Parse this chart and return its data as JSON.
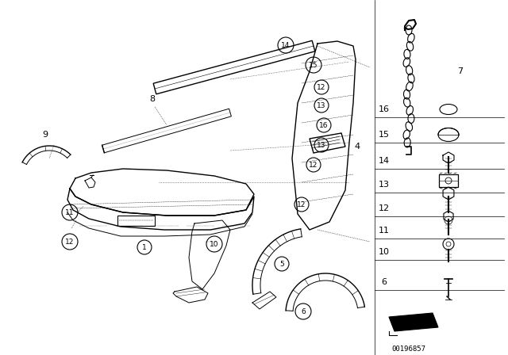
{
  "bg_color": "#ffffff",
  "fig_width": 6.4,
  "fig_height": 4.48,
  "dpi": 100,
  "diagram_id": "00196857"
}
